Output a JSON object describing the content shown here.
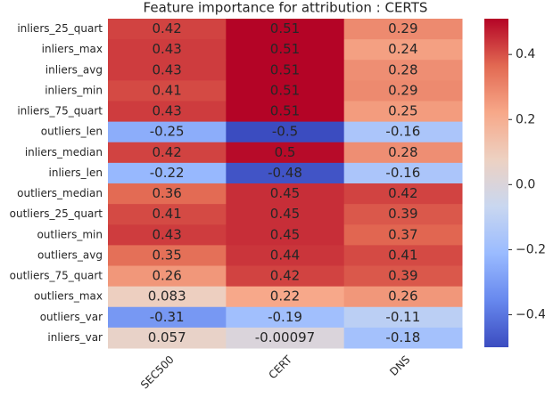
{
  "chart_data": {
    "type": "heatmap",
    "title": "Feature importance for attribution : CERTS",
    "x_categories": [
      "SEC500",
      "CERT",
      "DNS"
    ],
    "y_categories": [
      "inliers_25_quart",
      "inliers_max",
      "inliers_avg",
      "inliers_min",
      "inliers_75_quart",
      "outliers_len",
      "inliers_median",
      "inliers_len",
      "outliers_median",
      "outliers_25_quart",
      "outliers_min",
      "outliers_avg",
      "outliers_75_quart",
      "outliers_max",
      "outliers_var",
      "inliers_var"
    ],
    "values": [
      [
        0.42,
        0.51,
        0.29
      ],
      [
        0.43,
        0.51,
        0.24
      ],
      [
        0.43,
        0.51,
        0.28
      ],
      [
        0.41,
        0.51,
        0.29
      ],
      [
        0.43,
        0.51,
        0.25
      ],
      [
        -0.25,
        -0.5,
        -0.16
      ],
      [
        0.42,
        0.5,
        0.28
      ],
      [
        -0.22,
        -0.48,
        -0.16
      ],
      [
        0.36,
        0.45,
        0.42
      ],
      [
        0.41,
        0.45,
        0.39
      ],
      [
        0.43,
        0.45,
        0.37
      ],
      [
        0.35,
        0.44,
        0.41
      ],
      [
        0.26,
        0.42,
        0.39
      ],
      [
        0.083,
        0.22,
        0.26
      ],
      [
        -0.31,
        -0.19,
        -0.11
      ],
      [
        0.057,
        -0.00097,
        -0.18
      ]
    ],
    "clim": [
      -0.5,
      0.51
    ],
    "cticks": [
      {
        "value": -0.4,
        "label": "−0.4"
      },
      {
        "value": -0.2,
        "label": "−0.2"
      },
      {
        "value": 0,
        "label": "0.0"
      },
      0.2,
      0.4
    ],
    "colormap": [
      "#3b4cc0",
      "#6788ee",
      "#9abbff",
      "#c9d7f0",
      "#edd1c2",
      "#f7a889",
      "#e26952",
      "#b40426"
    ]
  }
}
